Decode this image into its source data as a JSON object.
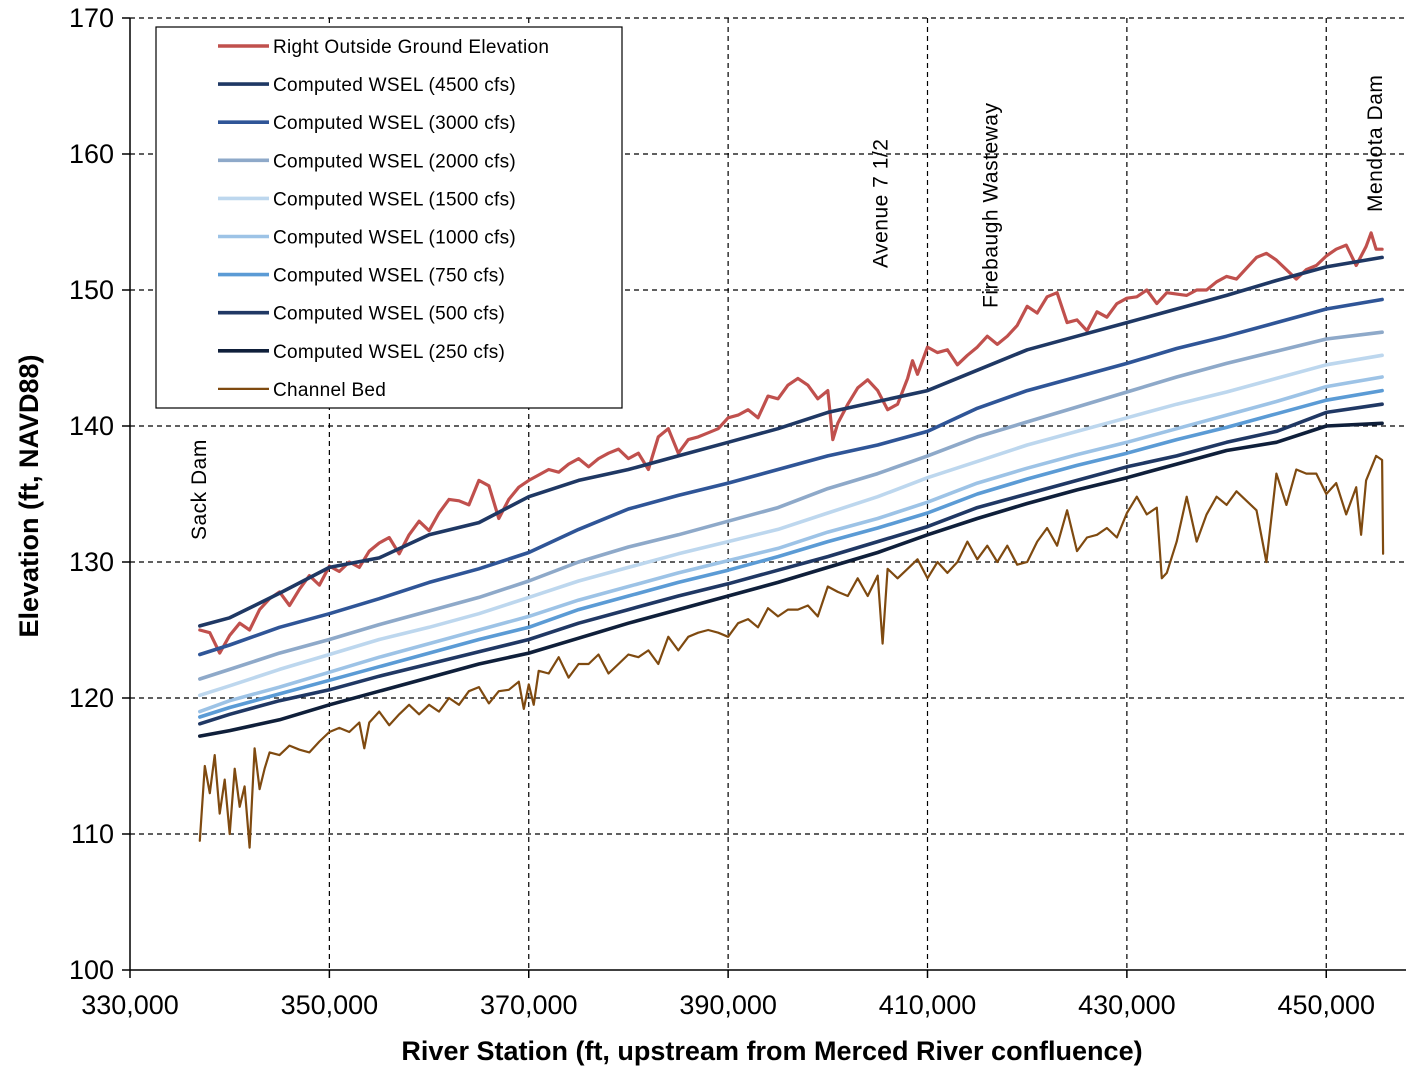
{
  "chart_data": {
    "type": "line",
    "xlabel": "River Station (ft, upstream from Merced River confluence)",
    "ylabel": "Elevation (ft, NAVD88)",
    "xlim": [
      330000,
      458000
    ],
    "ylim": [
      100,
      170
    ],
    "xticks": [
      330000,
      350000,
      370000,
      390000,
      410000,
      430000,
      450000
    ],
    "xtick_labels": [
      "330,000",
      "350,000",
      "370,000",
      "390,000",
      "410,000",
      "430,000",
      "450,000"
    ],
    "yticks": [
      100,
      110,
      120,
      130,
      140,
      150,
      160,
      170
    ],
    "ytick_labels": [
      "100",
      "110",
      "120",
      "130",
      "140",
      "150",
      "160",
      "170"
    ],
    "grid": true,
    "legend_position": "top-left",
    "annotations": [
      {
        "text": "Sack Dam",
        "x": 337600
      },
      {
        "text": "Avenue  7 1/2",
        "x": 406000
      },
      {
        "text": "Firebaugh  Wasteway",
        "x": 417000
      },
      {
        "text": "Mendota  Dam",
        "x": 455600
      }
    ],
    "series": [
      {
        "name": "Right Outside Ground Elevation",
        "color": "#C0504D",
        "x": [
          337000,
          338000,
          339000,
          340000,
          341000,
          342000,
          343000,
          344000,
          345000,
          346000,
          347000,
          348000,
          349000,
          350000,
          351000,
          352000,
          353000,
          354000,
          355000,
          356000,
          357000,
          358000,
          359000,
          360000,
          361000,
          362000,
          363000,
          364000,
          365000,
          366000,
          367000,
          368000,
          369000,
          370000,
          371000,
          372000,
          373000,
          374000,
          375000,
          376000,
          377000,
          378000,
          379000,
          380000,
          381000,
          382000,
          383000,
          384000,
          385000,
          386000,
          387000,
          388000,
          389000,
          390000,
          391000,
          392000,
          393000,
          394000,
          395000,
          396000,
          397000,
          398000,
          399000,
          400000,
          400500,
          401000,
          402000,
          403000,
          404000,
          405000,
          406000,
          407000,
          408000,
          408500,
          409000,
          410000,
          411000,
          412000,
          413000,
          414000,
          415000,
          416000,
          417000,
          418000,
          419000,
          420000,
          421000,
          422000,
          423000,
          424000,
          425000,
          426000,
          427000,
          428000,
          429000,
          430000,
          431000,
          432000,
          433000,
          434000,
          435000,
          436000,
          437000,
          438000,
          439000,
          440000,
          441000,
          442000,
          443000,
          444000,
          445000,
          446000,
          447000,
          448000,
          449000,
          450000,
          451000,
          452000,
          453000,
          454000,
          454500,
          455000,
          455600
        ],
        "y": [
          125.0,
          124.8,
          123.3,
          124.6,
          125.5,
          125.0,
          126.5,
          127.3,
          127.8,
          126.8,
          128.0,
          129.0,
          128.3,
          129.7,
          129.3,
          130.0,
          129.6,
          130.8,
          131.4,
          131.8,
          130.6,
          132.0,
          133.0,
          132.3,
          133.6,
          134.6,
          134.5,
          134.2,
          136.0,
          135.6,
          133.2,
          134.6,
          135.5,
          136.0,
          136.4,
          136.8,
          136.6,
          137.2,
          137.6,
          137.0,
          137.6,
          138.0,
          138.3,
          137.6,
          138.0,
          136.8,
          139.2,
          139.8,
          138.0,
          139.0,
          139.2,
          139.5,
          139.8,
          140.6,
          140.8,
          141.2,
          140.6,
          142.2,
          142.0,
          143.0,
          143.5,
          143.0,
          142.0,
          142.6,
          139.0,
          140.2,
          141.6,
          142.8,
          143.4,
          142.6,
          141.2,
          141.6,
          143.5,
          144.8,
          143.8,
          145.8,
          145.4,
          145.6,
          144.5,
          145.2,
          145.8,
          146.6,
          146.0,
          146.6,
          147.4,
          148.8,
          148.3,
          149.5,
          149.8,
          147.6,
          147.8,
          147.0,
          148.4,
          148.0,
          149.0,
          149.4,
          149.5,
          150.0,
          149.0,
          149.8,
          149.7,
          149.6,
          150.0,
          150.0,
          150.6,
          151.0,
          150.8,
          151.6,
          152.4,
          152.7,
          152.2,
          151.5,
          150.8,
          151.5,
          151.8,
          152.5,
          153.0,
          153.3,
          151.8,
          153.2,
          154.2,
          153.0,
          153.0
        ]
      },
      {
        "name": "Computed WSEL (4500 cfs)",
        "color": "#1F3864",
        "x": [
          337000,
          340000,
          345000,
          350000,
          355000,
          360000,
          365000,
          370000,
          375000,
          380000,
          385000,
          390000,
          395000,
          400000,
          405000,
          410000,
          415000,
          420000,
          425000,
          430000,
          435000,
          440000,
          445000,
          450000,
          455600
        ],
        "y": [
          125.3,
          125.9,
          127.7,
          129.6,
          130.3,
          132.0,
          132.9,
          134.8,
          136.0,
          136.8,
          137.8,
          138.8,
          139.8,
          141.0,
          141.8,
          142.6,
          144.1,
          145.6,
          146.6,
          147.6,
          148.6,
          149.6,
          150.7,
          151.7,
          152.4
        ]
      },
      {
        "name": "Computed WSEL (3000 cfs)",
        "color": "#2F5597",
        "x": [
          337000,
          340000,
          345000,
          350000,
          355000,
          360000,
          365000,
          370000,
          375000,
          380000,
          385000,
          390000,
          395000,
          400000,
          405000,
          410000,
          415000,
          420000,
          425000,
          430000,
          435000,
          440000,
          445000,
          450000,
          455600
        ],
        "y": [
          123.2,
          123.9,
          125.2,
          126.2,
          127.3,
          128.5,
          129.5,
          130.7,
          132.4,
          133.9,
          134.9,
          135.8,
          136.8,
          137.8,
          138.6,
          139.6,
          141.3,
          142.6,
          143.6,
          144.6,
          145.7,
          146.6,
          147.6,
          148.6,
          149.3
        ]
      },
      {
        "name": "Computed WSEL (2000 cfs)",
        "color": "#8EA9C9",
        "x": [
          337000,
          340000,
          345000,
          350000,
          355000,
          360000,
          365000,
          370000,
          375000,
          380000,
          385000,
          390000,
          395000,
          400000,
          405000,
          410000,
          415000,
          420000,
          425000,
          430000,
          435000,
          440000,
          445000,
          450000,
          455600
        ],
        "y": [
          121.4,
          122.1,
          123.3,
          124.3,
          125.4,
          126.4,
          127.4,
          128.6,
          130.0,
          131.1,
          132.0,
          133.0,
          134.0,
          135.4,
          136.5,
          137.8,
          139.2,
          140.3,
          141.4,
          142.5,
          143.6,
          144.6,
          145.5,
          146.4,
          146.9
        ]
      },
      {
        "name": "Computed WSEL (1500 cfs)",
        "color": "#BDD7EE",
        "x": [
          337000,
          340000,
          345000,
          350000,
          355000,
          360000,
          365000,
          370000,
          375000,
          380000,
          385000,
          390000,
          395000,
          400000,
          405000,
          410000,
          415000,
          420000,
          425000,
          430000,
          435000,
          440000,
          445000,
          450000,
          455600
        ],
        "y": [
          120.2,
          120.9,
          122.1,
          123.2,
          124.3,
          125.2,
          126.2,
          127.4,
          128.6,
          129.6,
          130.6,
          131.5,
          132.4,
          133.6,
          134.8,
          136.2,
          137.4,
          138.6,
          139.6,
          140.6,
          141.6,
          142.5,
          143.5,
          144.5,
          145.2
        ]
      },
      {
        "name": "Computed WSEL (1000 cfs)",
        "color": "#9DC3E6",
        "x": [
          337000,
          340000,
          345000,
          350000,
          355000,
          360000,
          365000,
          370000,
          375000,
          380000,
          385000,
          390000,
          395000,
          400000,
          405000,
          410000,
          415000,
          420000,
          425000,
          430000,
          435000,
          440000,
          445000,
          450000,
          455600
        ],
        "y": [
          119.0,
          119.8,
          120.8,
          121.9,
          123.0,
          124.0,
          125.0,
          126.0,
          127.2,
          128.2,
          129.2,
          130.1,
          131.0,
          132.2,
          133.2,
          134.4,
          135.8,
          136.9,
          137.9,
          138.8,
          139.8,
          140.8,
          141.8,
          142.9,
          143.6
        ]
      },
      {
        "name": "Computed WSEL (750 cfs)",
        "color": "#5B9BD5",
        "x": [
          337000,
          340000,
          345000,
          350000,
          355000,
          360000,
          365000,
          370000,
          375000,
          380000,
          385000,
          390000,
          395000,
          400000,
          405000,
          410000,
          415000,
          420000,
          425000,
          430000,
          435000,
          440000,
          445000,
          450000,
          455600
        ],
        "y": [
          118.6,
          119.3,
          120.3,
          121.3,
          122.3,
          123.3,
          124.3,
          125.2,
          126.5,
          127.5,
          128.5,
          129.4,
          130.4,
          131.5,
          132.5,
          133.6,
          135.0,
          136.1,
          137.1,
          138.0,
          139.0,
          139.9,
          140.9,
          141.9,
          142.6
        ]
      },
      {
        "name": "Computed WSEL (500 cfs)",
        "color": "#203864",
        "x": [
          337000,
          340000,
          345000,
          350000,
          355000,
          360000,
          365000,
          370000,
          375000,
          380000,
          385000,
          390000,
          395000,
          400000,
          405000,
          410000,
          415000,
          420000,
          425000,
          430000,
          435000,
          440000,
          445000,
          450000,
          455600
        ],
        "y": [
          118.1,
          118.8,
          119.8,
          120.6,
          121.6,
          122.5,
          123.4,
          124.3,
          125.5,
          126.5,
          127.5,
          128.4,
          129.4,
          130.4,
          131.5,
          132.6,
          134.0,
          135.0,
          136.0,
          137.0,
          137.8,
          138.8,
          139.6,
          141.0,
          141.6
        ]
      },
      {
        "name": "Computed WSEL (250 cfs)",
        "color": "#0F1F3A",
        "x": [
          337000,
          340000,
          345000,
          350000,
          355000,
          360000,
          365000,
          370000,
          375000,
          380000,
          385000,
          390000,
          395000,
          400000,
          405000,
          410000,
          415000,
          420000,
          425000,
          430000,
          435000,
          440000,
          445000,
          450000,
          455600
        ],
        "y": [
          117.2,
          117.6,
          118.4,
          119.5,
          120.5,
          121.5,
          122.5,
          123.3,
          124.4,
          125.5,
          126.5,
          127.5,
          128.5,
          129.6,
          130.7,
          132.0,
          133.2,
          134.3,
          135.3,
          136.2,
          137.2,
          138.2,
          138.8,
          140.0,
          140.2
        ]
      },
      {
        "name": "Channel Bed",
        "color": "#7F4A10",
        "x": [
          337000,
          337500,
          338000,
          338500,
          339000,
          339500,
          340000,
          340500,
          341000,
          341500,
          342000,
          342500,
          343000,
          343500,
          344000,
          345000,
          346000,
          347000,
          348000,
          349000,
          350000,
          351000,
          352000,
          353000,
          353500,
          354000,
          355000,
          356000,
          357000,
          358000,
          359000,
          360000,
          361000,
          362000,
          363000,
          364000,
          365000,
          366000,
          367000,
          368000,
          369000,
          369500,
          370000,
          370500,
          371000,
          372000,
          373000,
          374000,
          375000,
          376000,
          377000,
          378000,
          379000,
          380000,
          381000,
          382000,
          383000,
          384000,
          385000,
          386000,
          387000,
          388000,
          389000,
          390000,
          391000,
          392000,
          393000,
          394000,
          395000,
          396000,
          397000,
          398000,
          399000,
          400000,
          401000,
          402000,
          403000,
          404000,
          405000,
          405500,
          406000,
          407000,
          408000,
          409000,
          410000,
          411000,
          412000,
          413000,
          414000,
          415000,
          416000,
          417000,
          418000,
          419000,
          420000,
          421000,
          422000,
          423000,
          424000,
          425000,
          426000,
          427000,
          428000,
          429000,
          430000,
          431000,
          432000,
          433000,
          433500,
          434000,
          435000,
          436000,
          437000,
          438000,
          439000,
          440000,
          441000,
          442000,
          443000,
          444000,
          445000,
          446000,
          447000,
          448000,
          449000,
          450000,
          451000,
          452000,
          453000,
          453500,
          454000,
          455000,
          455600,
          455700
        ],
        "y": [
          109.5,
          115.0,
          113.0,
          115.8,
          111.5,
          114.0,
          110.0,
          114.8,
          112.0,
          113.5,
          109.0,
          116.3,
          113.3,
          114.8,
          116.0,
          115.8,
          116.5,
          116.2,
          116.0,
          116.8,
          117.5,
          117.8,
          117.5,
          118.2,
          116.3,
          118.2,
          119.0,
          118.0,
          118.8,
          119.5,
          118.8,
          119.5,
          119.0,
          120.0,
          119.5,
          120.5,
          120.8,
          119.6,
          120.5,
          120.6,
          121.2,
          119.2,
          121.0,
          119.5,
          122.0,
          121.8,
          123.0,
          121.5,
          122.5,
          122.5,
          123.2,
          121.8,
          122.5,
          123.2,
          123.0,
          123.5,
          122.5,
          124.5,
          123.5,
          124.5,
          124.8,
          125.0,
          124.8,
          124.5,
          125.5,
          125.8,
          125.2,
          126.6,
          126.0,
          126.5,
          126.5,
          126.8,
          126.0,
          128.2,
          127.8,
          127.5,
          128.8,
          127.5,
          129.0,
          124.0,
          129.5,
          128.8,
          129.5,
          130.2,
          128.8,
          130.0,
          129.2,
          130.0,
          131.5,
          130.2,
          131.2,
          130.0,
          131.2,
          129.8,
          130.0,
          131.5,
          132.5,
          131.2,
          133.8,
          130.8,
          131.8,
          132.0,
          132.5,
          131.8,
          133.6,
          134.8,
          133.5,
          134.0,
          128.8,
          129.2,
          131.5,
          134.8,
          131.5,
          133.5,
          134.8,
          134.2,
          135.2,
          134.5,
          133.8,
          130.0,
          136.5,
          134.2,
          136.8,
          136.5,
          136.5,
          135.0,
          135.8,
          133.5,
          135.5,
          132.0,
          136.0,
          137.8,
          137.5,
          130.6
        ]
      }
    ]
  }
}
